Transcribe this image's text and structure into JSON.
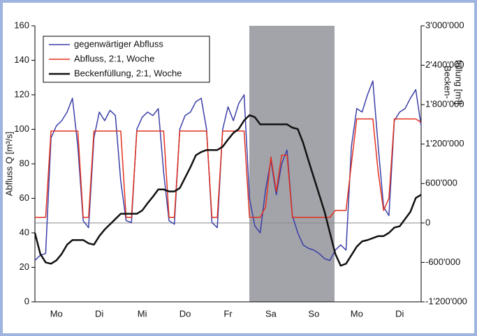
{
  "chart_data": {
    "type": "line",
    "categories": [
      null,
      null,
      null,
      null,
      "Mo",
      null,
      null,
      null,
      null,
      null,
      null,
      null,
      "Di",
      null,
      null,
      null,
      null,
      null,
      null,
      null,
      "Mi",
      null,
      null,
      null,
      null,
      null,
      null,
      null,
      "Do",
      null,
      null,
      null,
      null,
      null,
      null,
      null,
      "Fr",
      null,
      null,
      null,
      null,
      null,
      null,
      null,
      "Sa",
      null,
      null,
      null,
      null,
      null,
      null,
      null,
      "So",
      null,
      null,
      null,
      null,
      null,
      null,
      null,
      "Mo",
      null,
      null,
      null,
      null,
      null,
      null,
      null,
      "Di",
      null,
      null,
      null,
      null
    ],
    "ylabel": "Abfluss Q [m³/s]",
    "y2label": [
      "Becken-",
      "füllung [m³]"
    ],
    "ylim": [
      0,
      160
    ],
    "yticks": [
      0,
      20,
      40,
      60,
      80,
      100,
      120,
      140,
      160
    ],
    "y2lim": [
      -1200000,
      3000000
    ],
    "y2ticks": [
      {
        "value": -1200000,
        "label": "-1'200'000"
      },
      {
        "value": -600000,
        "label": "-600'000"
      },
      0,
      {
        "value": 600000,
        "label": "600'000"
      },
      {
        "value": 1200000,
        "label": "1'200'000"
      },
      {
        "value": 1800000,
        "label": "1'800'000"
      },
      {
        "value": 2400000,
        "label": "2'400'000"
      },
      {
        "value": 3000000,
        "label": "3'000'000"
      }
    ],
    "y2_zero_line": true,
    "legend": "upper left",
    "series": [
      {
        "name": "gegenwärtiger Abfluss",
        "color": "#3b3fa6",
        "values": [
          24,
          27,
          28,
          95,
          102,
          105,
          110,
          118,
          90,
          47,
          43,
          95,
          110,
          105,
          111,
          108,
          70,
          47,
          46,
          100,
          107,
          110,
          108,
          112,
          75,
          47,
          45,
          100,
          108,
          110,
          116,
          118,
          100,
          46,
          43,
          100,
          113,
          105,
          115,
          120,
          60,
          44,
          40,
          65,
          82,
          62,
          80,
          88,
          50,
          40,
          33,
          31,
          30,
          28,
          25,
          24,
          30,
          33,
          30,
          90,
          112,
          110,
          120,
          128,
          90,
          55,
          50,
          105,
          110,
          112,
          118,
          123,
          102
        ]
      },
      {
        "name": "Abfluss, 2:1, Woche",
        "color": "#e2321f",
        "values": [
          49,
          49,
          49,
          99,
          99,
          99,
          99,
          99,
          99,
          49,
          49,
          99,
          99,
          99,
          99,
          99,
          99,
          49,
          49,
          99,
          99,
          99,
          99,
          99,
          99,
          49,
          49,
          99,
          99,
          99,
          99,
          99,
          99,
          49,
          49,
          99,
          99,
          99,
          99,
          99,
          49,
          49,
          49,
          55,
          84,
          64,
          85,
          85,
          49,
          49,
          49,
          49,
          49,
          49,
          49,
          49,
          53,
          53,
          53,
          80,
          106,
          106,
          106,
          106,
          75,
          53,
          60,
          106,
          106,
          106,
          106,
          106,
          104
        ]
      },
      {
        "name": "Beckenfüllung, 2:1, Woche",
        "color": "#111111",
        "axis": "y2",
        "values": [
          -150000,
          -470000,
          -600000,
          -620000,
          -570000,
          -470000,
          -330000,
          -260000,
          -260000,
          -260000,
          -310000,
          -330000,
          -200000,
          -100000,
          -20000,
          60000,
          140000,
          140000,
          140000,
          140000,
          190000,
          300000,
          400000,
          510000,
          510000,
          480000,
          480000,
          530000,
          690000,
          850000,
          1030000,
          1080000,
          1110000,
          1110000,
          1110000,
          1160000,
          1270000,
          1370000,
          1430000,
          1560000,
          1640000,
          1610000,
          1500000,
          1500000,
          1500000,
          1500000,
          1500000,
          1500000,
          1450000,
          1430000,
          1220000,
          950000,
          690000,
          430000,
          170000,
          -150000,
          -470000,
          -650000,
          -620000,
          -490000,
          -360000,
          -280000,
          -260000,
          -230000,
          -200000,
          -200000,
          -150000,
          -70000,
          -50000,
          60000,
          170000,
          380000,
          430000
        ]
      }
    ]
  }
}
